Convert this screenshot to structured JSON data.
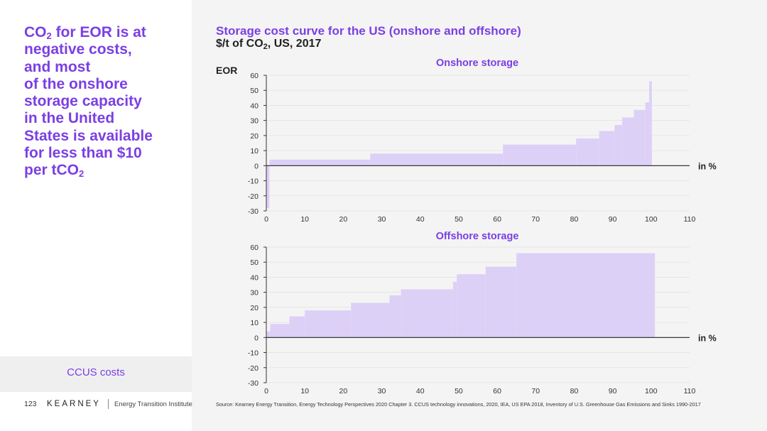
{
  "headline": {
    "line1_pre": "CO",
    "line1_sub": "2",
    "line1_post": " for EOR is at",
    "line2": "negative costs,",
    "line3": "and most",
    "line4": "of the onshore",
    "line5": "storage capacity",
    "line6": "in the United",
    "line7": "States is available",
    "line8": "for less than $10",
    "line9_pre": "per tCO",
    "line9_sub": "2"
  },
  "section_label": "CCUS costs",
  "footer": {
    "page_number": "123",
    "brand": "KEARNEY",
    "institute": "Energy Transition Institute"
  },
  "title": "Storage cost curve for the US (onshore and offshore)",
  "subtitle": {
    "pre": "$/t of CO",
    "sub": "2",
    "post": ", US, 2017"
  },
  "source": "Source: Kearney Energy Transition, Energy Technology Perspectives 2020 Chapter 3. CCUS technology innovations, 2020, IEA, US EPA 2018, Inventory of U.S. Greenhouse Gas Emissions and Sinks 1990-2017",
  "colors": {
    "accent": "#7b3fe4",
    "fill": "#ddd0f7"
  },
  "chart_data": [
    {
      "type": "area",
      "title": "Onshore storage",
      "annotation": "EOR",
      "xlabel": "in %",
      "xlim": [
        0,
        110
      ],
      "ylim": [
        -30,
        60
      ],
      "xticks": [
        0,
        10,
        20,
        30,
        40,
        50,
        60,
        70,
        80,
        90,
        100,
        110
      ],
      "yticks": [
        60,
        50,
        40,
        30,
        20,
        10,
        0,
        -10,
        -20,
        -30
      ],
      "grid": true,
      "steps": [
        {
          "x0": 0,
          "x1": 0.8,
          "y": -28
        },
        {
          "x0": 0.8,
          "x1": 27,
          "y": 4
        },
        {
          "x0": 27,
          "x1": 61.5,
          "y": 8
        },
        {
          "x0": 61.5,
          "x1": 80.5,
          "y": 14
        },
        {
          "x0": 80.5,
          "x1": 86.5,
          "y": 18
        },
        {
          "x0": 86.5,
          "x1": 90.5,
          "y": 23
        },
        {
          "x0": 90.5,
          "x1": 92.5,
          "y": 27
        },
        {
          "x0": 92.5,
          "x1": 95.5,
          "y": 32
        },
        {
          "x0": 95.5,
          "x1": 98.5,
          "y": 37
        },
        {
          "x0": 98.5,
          "x1": 99.5,
          "y": 42
        },
        {
          "x0": 99.5,
          "x1": 100.2,
          "y": 56
        }
      ]
    },
    {
      "type": "area",
      "title": "Offshore storage",
      "xlabel": "in %",
      "xlim": [
        0,
        110
      ],
      "ylim": [
        -30,
        60
      ],
      "xticks": [
        0,
        10,
        20,
        30,
        40,
        50,
        60,
        70,
        80,
        90,
        100,
        110
      ],
      "yticks": [
        60,
        50,
        40,
        30,
        20,
        10,
        0,
        -10,
        -20,
        -30
      ],
      "grid": true,
      "steps": [
        {
          "x0": 0,
          "x1": 1,
          "y": 4
        },
        {
          "x0": 1,
          "x1": 6,
          "y": 9
        },
        {
          "x0": 6,
          "x1": 10,
          "y": 14
        },
        {
          "x0": 10,
          "x1": 22,
          "y": 18
        },
        {
          "x0": 22,
          "x1": 32,
          "y": 23
        },
        {
          "x0": 32,
          "x1": 35,
          "y": 28
        },
        {
          "x0": 35,
          "x1": 48.5,
          "y": 32
        },
        {
          "x0": 48.5,
          "x1": 49.5,
          "y": 37
        },
        {
          "x0": 49.5,
          "x1": 57,
          "y": 42
        },
        {
          "x0": 57,
          "x1": 65,
          "y": 47
        },
        {
          "x0": 65,
          "x1": 101,
          "y": 56
        }
      ]
    }
  ]
}
